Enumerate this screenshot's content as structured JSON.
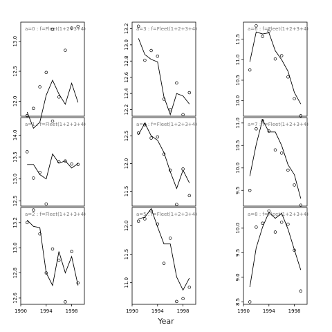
{
  "chart_data": {
    "type": "line",
    "xlabel": "Year",
    "xlim": [
      1990,
      2000
    ],
    "x_ticks": [
      1990,
      1994,
      1998
    ],
    "panels": [
      {
        "label": "a=0  :  f=Fleet(1+2+3+4)",
        "ylim": [
          11.75,
          13.32
        ],
        "y_ticks": [
          12.0,
          12.5,
          13.0
        ],
        "fitted": [
          {
            "x": 1991,
            "y": 11.82
          },
          {
            "x": 1992,
            "y": 11.55
          },
          {
            "x": 1993,
            "y": 11.65
          },
          {
            "x": 1994,
            "y": 12.1
          },
          {
            "x": 1995,
            "y": 12.35
          },
          {
            "x": 1996,
            "y": 12.12
          },
          {
            "x": 1997,
            "y": 11.95
          },
          {
            "x": 1998,
            "y": 12.3
          },
          {
            "x": 1999,
            "y": 11.98
          }
        ],
        "observed": [
          {
            "x": 1991,
            "y": 11.76
          },
          {
            "x": 1992,
            "y": 11.88
          },
          {
            "x": 1993,
            "y": 12.24
          },
          {
            "x": 1994,
            "y": 12.48
          },
          {
            "x": 1995,
            "y": 13.2
          },
          {
            "x": 1996,
            "y": 12.07
          },
          {
            "x": 1997,
            "y": 12.85
          },
          {
            "x": 1998,
            "y": 13.22
          },
          {
            "x": 1999,
            "y": 13.25
          }
        ]
      },
      {
        "label": "a=3  :  f=Fleet(1+2+3+4)",
        "ylim": [
          12.12,
          13.28
        ],
        "y_ticks": [
          12.2,
          12.4,
          12.6,
          12.8,
          13.0,
          13.2
        ],
        "fitted": [
          {
            "x": 1991,
            "y": 13.08
          },
          {
            "x": 1992,
            "y": 12.88
          },
          {
            "x": 1993,
            "y": 12.82
          },
          {
            "x": 1994,
            "y": 12.79
          },
          {
            "x": 1995,
            "y": 12.36
          },
          {
            "x": 1996,
            "y": 12.14
          },
          {
            "x": 1997,
            "y": 12.4
          },
          {
            "x": 1998,
            "y": 12.37
          },
          {
            "x": 1999,
            "y": 12.27
          }
        ],
        "observed": [
          {
            "x": 1991,
            "y": 13.23
          },
          {
            "x": 1992,
            "y": 12.81
          },
          {
            "x": 1993,
            "y": 12.93
          },
          {
            "x": 1994,
            "y": 12.86
          },
          {
            "x": 1995,
            "y": 12.33
          },
          {
            "x": 1996,
            "y": 12.2
          },
          {
            "x": 1997,
            "y": 12.53
          },
          {
            "x": 1998,
            "y": 12.14
          },
          {
            "x": 1999,
            "y": 12.41
          }
        ]
      },
      {
        "label": "a=6  :  f=Fleet(1+2+3+4)",
        "ylim": [
          9.62,
          11.92
        ],
        "y_ticks": [
          10.0,
          10.5,
          11.0,
          11.5
        ],
        "fitted": [
          {
            "x": 1991,
            "y": 10.95
          },
          {
            "x": 1992,
            "y": 11.68
          },
          {
            "x": 1993,
            "y": 11.63
          },
          {
            "x": 1994,
            "y": 11.66
          },
          {
            "x": 1995,
            "y": 11.22
          },
          {
            "x": 1996,
            "y": 11.0
          },
          {
            "x": 1997,
            "y": 10.72
          },
          {
            "x": 1998,
            "y": 10.2
          },
          {
            "x": 1999,
            "y": 9.92
          }
        ],
        "observed": [
          {
            "x": 1991,
            "y": 10.75
          },
          {
            "x": 1992,
            "y": 11.83
          },
          {
            "x": 1993,
            "y": 11.57
          },
          {
            "x": 1994,
            "y": 11.7
          },
          {
            "x": 1995,
            "y": 11.02
          },
          {
            "x": 1996,
            "y": 11.1
          },
          {
            "x": 1997,
            "y": 10.58
          },
          {
            "x": 1998,
            "y": 10.05
          },
          {
            "x": 1999,
            "y": 9.63
          }
        ]
      },
      {
        "label": "a=1  :  f=Fleet(1+2+3+4)",
        "ylim": [
          12.38,
          14.4
        ],
        "y_ticks": [
          12.5,
          13.0,
          13.5,
          14.0
        ],
        "fitted": [
          {
            "x": 1991,
            "y": 13.33
          },
          {
            "x": 1992,
            "y": 13.33
          },
          {
            "x": 1993,
            "y": 13.1
          },
          {
            "x": 1994,
            "y": 13.0
          },
          {
            "x": 1995,
            "y": 13.57
          },
          {
            "x": 1996,
            "y": 13.36
          },
          {
            "x": 1997,
            "y": 13.41
          },
          {
            "x": 1998,
            "y": 13.25
          },
          {
            "x": 1999,
            "y": 13.35
          }
        ],
        "observed": [
          {
            "x": 1991,
            "y": 13.62
          },
          {
            "x": 1992,
            "y": 13.02
          },
          {
            "x": 1993,
            "y": 13.15
          },
          {
            "x": 1994,
            "y": 12.43
          },
          {
            "x": 1995,
            "y": 14.32
          },
          {
            "x": 1996,
            "y": 13.39
          },
          {
            "x": 1997,
            "y": 13.41
          },
          {
            "x": 1998,
            "y": 13.34
          },
          {
            "x": 1999,
            "y": 13.33
          }
        ]
      },
      {
        "label": "a=4  :  f=Fleet(1+2+3+4)",
        "ylim": [
          11.23,
          12.83
        ],
        "y_ticks": [
          11.5,
          12.0,
          12.5
        ],
        "fitted": [
          {
            "x": 1991,
            "y": 12.52
          },
          {
            "x": 1992,
            "y": 12.73
          },
          {
            "x": 1993,
            "y": 12.5
          },
          {
            "x": 1994,
            "y": 12.42
          },
          {
            "x": 1995,
            "y": 12.2
          },
          {
            "x": 1996,
            "y": 11.85
          },
          {
            "x": 1997,
            "y": 11.55
          },
          {
            "x": 1998,
            "y": 11.88
          },
          {
            "x": 1999,
            "y": 11.65
          }
        ],
        "observed": [
          {
            "x": 1991,
            "y": 12.55
          },
          {
            "x": 1992,
            "y": 12.7
          },
          {
            "x": 1993,
            "y": 12.46
          },
          {
            "x": 1994,
            "y": 12.48
          },
          {
            "x": 1995,
            "y": 12.17
          },
          {
            "x": 1996,
            "y": 11.88
          },
          {
            "x": 1997,
            "y": 11.26
          },
          {
            "x": 1998,
            "y": 11.9
          },
          {
            "x": 1999,
            "y": 11.42
          }
        ]
      },
      {
        "label": "a=7  :  f=Fleet(1+2+3+4)",
        "ylim": [
          9.15,
          11.12
        ],
        "y_ticks": [
          9.5,
          10.0,
          10.5,
          11.0
        ],
        "fitted": [
          {
            "x": 1991,
            "y": 9.82
          },
          {
            "x": 1992,
            "y": 10.52
          },
          {
            "x": 1993,
            "y": 11.07
          },
          {
            "x": 1994,
            "y": 10.8
          },
          {
            "x": 1995,
            "y": 10.8
          },
          {
            "x": 1996,
            "y": 10.5
          },
          {
            "x": 1997,
            "y": 10.07
          },
          {
            "x": 1998,
            "y": 9.85
          },
          {
            "x": 1999,
            "y": 9.32
          }
        ],
        "observed": [
          {
            "x": 1991,
            "y": 9.5
          },
          {
            "x": 1992,
            "y": 10.87
          },
          {
            "x": 1993,
            "y": 11.05
          },
          {
            "x": 1994,
            "y": 10.82
          },
          {
            "x": 1995,
            "y": 10.4
          },
          {
            "x": 1996,
            "y": 10.33
          },
          {
            "x": 1997,
            "y": 9.95
          },
          {
            "x": 1998,
            "y": 9.62
          },
          {
            "x": 1999,
            "y": 9.17
          }
        ]
      },
      {
        "label": "a=2  :  f=Fleet(1+2+3+4)",
        "ylim": [
          12.55,
          13.32
        ],
        "y_ticks": [
          12.6,
          12.8,
          13.0,
          13.2
        ],
        "fitted": [
          {
            "x": 1991,
            "y": 13.22
          },
          {
            "x": 1992,
            "y": 13.17
          },
          {
            "x": 1993,
            "y": 13.16
          },
          {
            "x": 1994,
            "y": 12.8
          },
          {
            "x": 1995,
            "y": 12.7
          },
          {
            "x": 1996,
            "y": 12.97
          },
          {
            "x": 1997,
            "y": 12.8
          },
          {
            "x": 1998,
            "y": 12.93
          },
          {
            "x": 1999,
            "y": 12.7
          }
        ],
        "observed": [
          {
            "x": 1991,
            "y": 13.2
          },
          {
            "x": 1992,
            "y": 13.3
          },
          {
            "x": 1993,
            "y": 13.11
          },
          {
            "x": 1994,
            "y": 12.8
          },
          {
            "x": 1995,
            "y": 12.99
          },
          {
            "x": 1996,
            "y": 12.9
          },
          {
            "x": 1997,
            "y": 12.57
          },
          {
            "x": 1998,
            "y": 12.97
          },
          {
            "x": 1999,
            "y": 12.72
          }
        ]
      },
      {
        "label": "a=5  :  f=Fleet(1+2+3+4)",
        "ylim": [
          10.62,
          12.32
        ],
        "y_ticks": [
          11.0,
          11.5,
          12.0
        ],
        "fitted": [
          {
            "x": 1991,
            "y": 12.12
          },
          {
            "x": 1992,
            "y": 12.15
          },
          {
            "x": 1993,
            "y": 12.3
          },
          {
            "x": 1994,
            "y": 11.98
          },
          {
            "x": 1995,
            "y": 11.68
          },
          {
            "x": 1996,
            "y": 11.68
          },
          {
            "x": 1997,
            "y": 11.1
          },
          {
            "x": 1998,
            "y": 10.87
          },
          {
            "x": 1999,
            "y": 11.08
          }
        ],
        "observed": [
          {
            "x": 1991,
            "y": 12.08
          },
          {
            "x": 1992,
            "y": 12.12
          },
          {
            "x": 1993,
            "y": 12.26
          },
          {
            "x": 1994,
            "y": 12.03
          },
          {
            "x": 1995,
            "y": 11.34
          },
          {
            "x": 1996,
            "y": 11.78
          },
          {
            "x": 1997,
            "y": 10.67
          },
          {
            "x": 1998,
            "y": 10.72
          },
          {
            "x": 1999,
            "y": 10.92
          }
        ]
      },
      {
        "label": "a=8  :  f=Fleet(1+2+3+4)",
        "ylim": [
          8.45,
          10.42
        ],
        "y_ticks": [
          8.5,
          9.0,
          9.5,
          10.0
        ],
        "fitted": [
          {
            "x": 1991,
            "y": 8.8
          },
          {
            "x": 1992,
            "y": 9.6
          },
          {
            "x": 1993,
            "y": 10.02
          },
          {
            "x": 1994,
            "y": 10.32
          },
          {
            "x": 1995,
            "y": 10.2
          },
          {
            "x": 1996,
            "y": 10.3
          },
          {
            "x": 1997,
            "y": 9.98
          },
          {
            "x": 1998,
            "y": 9.56
          },
          {
            "x": 1999,
            "y": 9.15
          }
        ],
        "observed": [
          {
            "x": 1991,
            "y": 8.5
          },
          {
            "x": 1992,
            "y": 10.02
          },
          {
            "x": 1993,
            "y": 10.1
          },
          {
            "x": 1994,
            "y": 10.35
          },
          {
            "x": 1995,
            "y": 9.92
          },
          {
            "x": 1996,
            "y": 10.12
          },
          {
            "x": 1997,
            "y": 10.08
          },
          {
            "x": 1998,
            "y": 9.55
          },
          {
            "x": 1999,
            "y": 8.72
          }
        ]
      }
    ]
  }
}
